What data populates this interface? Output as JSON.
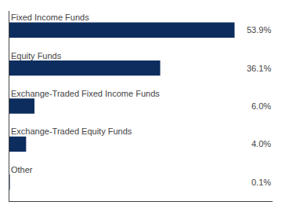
{
  "chart_data": {
    "type": "bar",
    "orientation": "horizontal",
    "categories": [
      "Fixed Income Funds",
      "Equity Funds",
      "Exchange-Traded Fixed Income Funds",
      "Exchange-Traded Equity Funds",
      "Other"
    ],
    "values": [
      53.9,
      36.1,
      6.0,
      4.0,
      0.1
    ],
    "value_labels": [
      "53.9%",
      "36.1%",
      "6.0%",
      "4.0%",
      "0.1%"
    ],
    "data_labels": true,
    "color": "#0d2d5e",
    "xlim": [
      0,
      63
    ],
    "tick_labels": false,
    "grid": false
  }
}
